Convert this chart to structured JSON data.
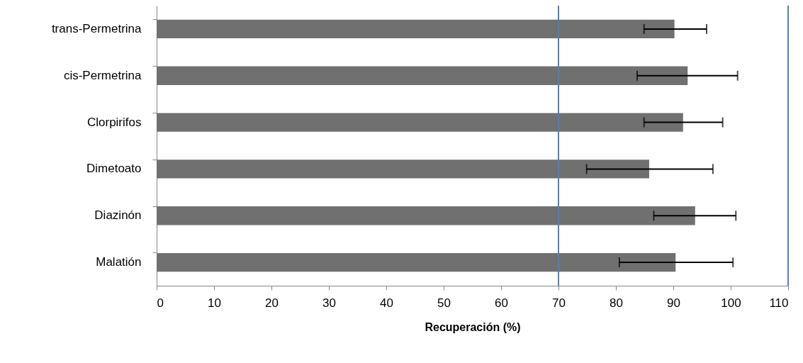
{
  "chart_data": {
    "type": "bar",
    "orientation": "horizontal",
    "xlabel": "Recuperación (%)",
    "categories": [
      "trans-Permetrina",
      "cis-Permetrina",
      "Clorpirifos",
      "Dimetoato",
      "Diazinón",
      "Malatión"
    ],
    "values": [
      90.2,
      92.5,
      91.7,
      85.8,
      93.8,
      90.4
    ],
    "errors": [
      [
        84.9,
        95.8
      ],
      [
        83.7,
        101.2
      ],
      [
        84.9,
        98.6
      ],
      [
        74.9,
        96.9
      ],
      [
        86.6,
        100.9
      ],
      [
        80.6,
        100.4
      ]
    ],
    "color": "#707070",
    "xlim": [
      0,
      110
    ],
    "xticks": [
      0,
      10,
      20,
      30,
      40,
      50,
      60,
      70,
      80,
      90,
      100,
      110
    ],
    "ref_lines": [
      {
        "axis": "x",
        "value": 70,
        "color": "#4f81bd"
      },
      {
        "axis": "x",
        "value": 110,
        "color": "#4f81bd"
      }
    ],
    "grid": false
  }
}
